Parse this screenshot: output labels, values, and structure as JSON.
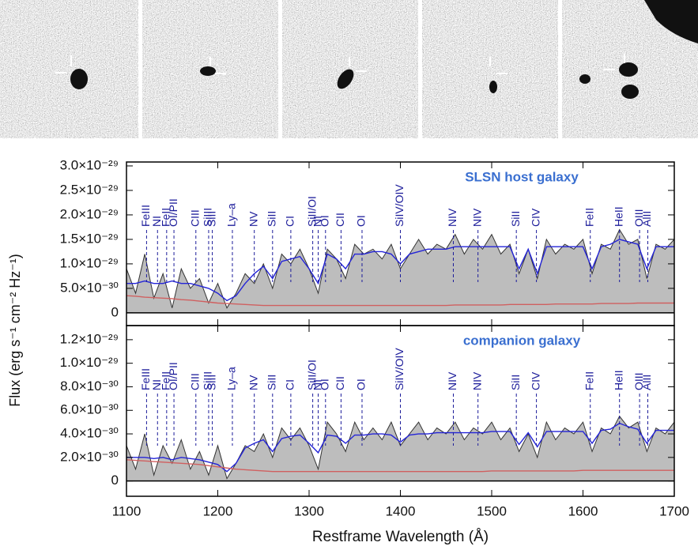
{
  "chart_data": [
    {
      "type": "line",
      "title": "SLSN host galaxy",
      "title_color": "#3a6fd0",
      "ylabel": "Flux (erg s⁻¹ cm⁻² Hz⁻¹)",
      "xlim": [
        1100,
        1700
      ],
      "xticks": [
        1100,
        1200,
        1300,
        1400,
        1500,
        1600,
        1700
      ],
      "ylim": [
        -2.6e-30,
        3.08e-29
      ],
      "yticks": [
        0,
        {
          "value": 5e-30,
          "label": "5.0×10⁻³⁰"
        },
        {
          "value": 1e-29,
          "label": "1.0×10⁻²⁹"
        },
        {
          "value": 1.5e-29,
          "label": "1.5×10⁻²⁹"
        },
        {
          "value": 2e-29,
          "label": "2.0×10⁻²⁹"
        },
        {
          "value": 2.5e-29,
          "label": "2.5×10⁻²⁹"
        },
        {
          "value": 3e-29,
          "label": "3.0×10⁻²⁹"
        }
      ],
      "x": [
        1100,
        1110,
        1120,
        1130,
        1140,
        1150,
        1160,
        1170,
        1180,
        1190,
        1200,
        1210,
        1220,
        1230,
        1240,
        1250,
        1260,
        1270,
        1280,
        1290,
        1300,
        1310,
        1320,
        1330,
        1340,
        1350,
        1360,
        1370,
        1380,
        1390,
        1400,
        1410,
        1420,
        1430,
        1440,
        1450,
        1460,
        1470,
        1480,
        1490,
        1500,
        1510,
        1520,
        1530,
        1540,
        1550,
        1560,
        1570,
        1580,
        1590,
        1600,
        1610,
        1620,
        1630,
        1640,
        1650,
        1660,
        1670,
        1680,
        1690,
        1700
      ],
      "series": [
        {
          "name": "spectrum",
          "color": "#333333",
          "fill": "#bdbdbd",
          "values": [
            9e-30,
            4e-30,
            1.2e-29,
            3e-30,
            8e-30,
            1e-30,
            9e-30,
            5e-30,
            7e-30,
            2e-30,
            6e-30,
            1e-30,
            4e-30,
            8e-30,
            6e-30,
            1e-29,
            5e-30,
            1.2e-29,
            1e-29,
            1.3e-29,
            9e-30,
            4e-30,
            1.3e-29,
            1.1e-29,
            7e-30,
            1.4e-29,
            1.2e-29,
            1.3e-29,
            1.1e-29,
            1.4e-29,
            9e-30,
            1.2e-29,
            1.5e-29,
            1.2e-29,
            1.4e-29,
            1.3e-29,
            1.6e-29,
            1.2e-29,
            1.5e-29,
            1.3e-29,
            1.6e-29,
            1.2e-29,
            1.4e-29,
            8e-30,
            1.3e-29,
            7e-30,
            1.5e-29,
            1.2e-29,
            1.4e-29,
            1.3e-29,
            1.5e-29,
            8e-30,
            1.4e-29,
            1.3e-29,
            1.7e-29,
            1.4e-29,
            1.5e-29,
            7e-30,
            1.4e-29,
            1.3e-29,
            1.5e-29
          ]
        },
        {
          "name": "model",
          "color": "#2424d8",
          "values": [
            6e-30,
            6e-30,
            6.5e-30,
            6e-30,
            6e-30,
            6.5e-30,
            6e-30,
            6e-30,
            5.5e-30,
            5e-30,
            4e-30,
            2.5e-30,
            3.5e-30,
            6e-30,
            8e-30,
            9.5e-30,
            7e-30,
            1.05e-29,
            1.1e-29,
            1.15e-29,
            9e-30,
            6e-30,
            1.2e-29,
            1.1e-29,
            9e-30,
            1.2e-29,
            1.2e-29,
            1.25e-29,
            1.25e-29,
            1.2e-29,
            1e-29,
            1.2e-29,
            1.25e-29,
            1.3e-29,
            1.3e-29,
            1.3e-29,
            1.35e-29,
            1.35e-29,
            1.35e-29,
            1.35e-29,
            1.35e-29,
            1.35e-29,
            1.35e-29,
            9e-30,
            1.3e-29,
            8e-30,
            1.35e-29,
            1.35e-29,
            1.35e-29,
            1.35e-29,
            1.35e-29,
            9e-30,
            1.35e-29,
            1.4e-29,
            1.5e-29,
            1.45e-29,
            1.4e-29,
            9e-30,
            1.35e-29,
            1.35e-29,
            1.35e-29
          ]
        },
        {
          "name": "error",
          "color": "#d06060",
          "values": [
            3.5e-30,
            3.4e-30,
            3.2e-30,
            3.1e-30,
            3e-30,
            2.9e-30,
            2.7e-30,
            2.6e-30,
            2.4e-30,
            2.2e-30,
            2e-30,
            1.9e-30,
            1.8e-30,
            1.7e-30,
            1.6e-30,
            1.5e-30,
            1.5e-30,
            1.5e-30,
            1.5e-30,
            1.5e-30,
            1.5e-30,
            1.5e-30,
            1.5e-30,
            1.5e-30,
            1.5e-30,
            1.5e-30,
            1.5e-30,
            1.5e-30,
            1.5e-30,
            1.5e-30,
            1.5e-30,
            1.5e-30,
            1.5e-30,
            1.5e-30,
            1.5e-30,
            1.5e-30,
            1.6e-30,
            1.6e-30,
            1.6e-30,
            1.6e-30,
            1.6e-30,
            1.6e-30,
            1.7e-30,
            1.7e-30,
            1.7e-30,
            1.7e-30,
            1.7e-30,
            1.8e-30,
            1.8e-30,
            1.8e-30,
            1.8e-30,
            1.8e-30,
            1.9e-30,
            1.9e-30,
            1.9e-30,
            1.9e-30,
            2e-30,
            2e-30,
            2e-30,
            2e-30,
            2e-30
          ]
        }
      ],
      "annotations": [
        {
          "text": "FeIII",
          "x": 1122
        },
        {
          "text": "NI",
          "x": 1134
        },
        {
          "text": "FeII",
          "x": 1144
        },
        {
          "text": "OI/PII",
          "x": 1152
        },
        {
          "text": "CIII",
          "x": 1176
        },
        {
          "text": "SiIII",
          "x": 1190
        },
        {
          "text": "SiII",
          "x": 1194
        },
        {
          "text": "Ly–a",
          "x": 1216
        },
        {
          "text": "NV",
          "x": 1240
        },
        {
          "text": "SiII",
          "x": 1260
        },
        {
          "text": "CI",
          "x": 1280
        },
        {
          "text": "SiII/OI",
          "x": 1304
        },
        {
          "text": "NI",
          "x": 1310
        },
        {
          "text": "OI",
          "x": 1318
        },
        {
          "text": "CII",
          "x": 1335
        },
        {
          "text": "OI",
          "x": 1358
        },
        {
          "text": "SiIV/OIV",
          "x": 1400
        },
        {
          "text": "NIV",
          "x": 1458
        },
        {
          "text": "NIV",
          "x": 1485
        },
        {
          "text": "SiII",
          "x": 1527
        },
        {
          "text": "CIV",
          "x": 1549
        },
        {
          "text": "FeII",
          "x": 1608
        },
        {
          "text": "HeII",
          "x": 1640
        },
        {
          "text": "OIII",
          "x": 1662
        },
        {
          "text": "AlII",
          "x": 1671
        }
      ]
    },
    {
      "type": "line",
      "title": "companion galaxy",
      "title_color": "#3a6fd0",
      "xlabel": "Restframe Wavelength (Å)",
      "xlim": [
        1100,
        1700
      ],
      "xticks": [
        1100,
        1200,
        1300,
        1400,
        1500,
        1600,
        1700
      ],
      "ylim": [
        -1.3e-30,
        1.32e-29
      ],
      "yticks": [
        0,
        {
          "value": 2e-30,
          "label": "2.0×10⁻³⁰"
        },
        {
          "value": 4e-30,
          "label": "4.0×10⁻³⁰"
        },
        {
          "value": 6e-30,
          "label": "6.0×10⁻³⁰"
        },
        {
          "value": 8e-30,
          "label": "8.0×10⁻³⁰"
        },
        {
          "value": 1e-29,
          "label": "1.0×10⁻²⁹"
        },
        {
          "value": 1.2e-29,
          "label": "1.2×10⁻²⁹"
        }
      ],
      "x": [
        1100,
        1110,
        1120,
        1130,
        1140,
        1150,
        1160,
        1170,
        1180,
        1190,
        1200,
        1210,
        1220,
        1230,
        1240,
        1250,
        1260,
        1270,
        1280,
        1290,
        1300,
        1310,
        1320,
        1330,
        1340,
        1350,
        1360,
        1370,
        1380,
        1390,
        1400,
        1410,
        1420,
        1430,
        1440,
        1450,
        1460,
        1470,
        1480,
        1490,
        1500,
        1510,
        1520,
        1530,
        1540,
        1550,
        1560,
        1570,
        1580,
        1590,
        1600,
        1610,
        1620,
        1630,
        1640,
        1650,
        1660,
        1670,
        1680,
        1690,
        1700
      ],
      "series": [
        {
          "name": "spectrum",
          "color": "#333333",
          "fill": "#bdbdbd",
          "values": [
            3e-30,
            1e-30,
            4e-30,
            5e-31,
            3e-30,
            1.5e-30,
            3.5e-30,
            1e-30,
            2.5e-30,
            5e-31,
            3e-30,
            2e-31,
            1.5e-30,
            3e-30,
            2.5e-30,
            4e-30,
            2e-30,
            4.5e-30,
            3.5e-30,
            4.5e-30,
            3e-30,
            1e-30,
            5e-30,
            4e-30,
            2.5e-30,
            5e-30,
            3.5e-30,
            4.5e-30,
            3.5e-30,
            5e-30,
            3e-30,
            4e-30,
            5e-30,
            3.5e-30,
            4.5e-30,
            4e-30,
            5e-30,
            3.5e-30,
            4.5e-30,
            4e-30,
            5e-30,
            3.5e-30,
            4.5e-30,
            2.5e-30,
            4e-30,
            2e-30,
            5e-30,
            3.5e-30,
            4.5e-30,
            4e-30,
            5e-30,
            2.5e-30,
            4.5e-30,
            4e-30,
            5.5e-30,
            4.5e-30,
            5e-30,
            2.5e-30,
            4.5e-30,
            4e-30,
            5e-30
          ]
        },
        {
          "name": "model",
          "color": "#2424d8",
          "values": [
            2e-30,
            2e-30,
            2e-30,
            1.9e-30,
            2e-30,
            1.8e-30,
            2e-30,
            1.9e-30,
            1.8e-30,
            1.6e-30,
            1.4e-30,
            8e-31,
            1.5e-30,
            2.8e-30,
            3.2e-30,
            3.5e-30,
            2.5e-30,
            3.6e-30,
            3.8e-30,
            3.9e-30,
            3.2e-30,
            2.4e-30,
            3.9e-30,
            3.8e-30,
            3.2e-30,
            3.9e-30,
            3.9e-30,
            4e-30,
            4e-30,
            3.9e-30,
            3.3e-30,
            3.9e-30,
            4e-30,
            4e-30,
            4.1e-30,
            4.1e-30,
            4.1e-30,
            4.1e-30,
            4.1e-30,
            4.1e-30,
            4.2e-30,
            4.2e-30,
            4.2e-30,
            3.1e-30,
            4.1e-30,
            2.9e-30,
            4.2e-30,
            4.2e-30,
            4.2e-30,
            4.2e-30,
            4.2e-30,
            3.2e-30,
            4.3e-30,
            4.4e-30,
            4.9e-30,
            4.6e-30,
            4.4e-30,
            3.2e-30,
            4.3e-30,
            4.3e-30,
            4.3e-30
          ]
        },
        {
          "name": "error",
          "color": "#d06060",
          "values": [
            1.8e-30,
            1.75e-30,
            1.7e-30,
            1.65e-30,
            1.6e-30,
            1.55e-30,
            1.5e-30,
            1.45e-30,
            1.4e-30,
            1.3e-30,
            1.2e-30,
            1.1e-30,
            1e-30,
            9.5e-31,
            9e-31,
            8.5e-31,
            8e-31,
            8e-31,
            8e-31,
            8e-31,
            8e-31,
            8e-31,
            8e-31,
            8e-31,
            8e-31,
            8e-31,
            8e-31,
            8e-31,
            8e-31,
            8e-31,
            8e-31,
            8e-31,
            8e-31,
            8e-31,
            8e-31,
            8e-31,
            8e-31,
            8e-31,
            8e-31,
            8e-31,
            8.5e-31,
            8.5e-31,
            8.5e-31,
            8.5e-31,
            8.5e-31,
            8.5e-31,
            8.5e-31,
            8.5e-31,
            8.5e-31,
            8.5e-31,
            9e-31,
            9e-31,
            9e-31,
            9e-31,
            9e-31,
            9e-31,
            9e-31,
            9e-31,
            9e-31,
            9e-31,
            9e-31
          ]
        }
      ],
      "annotations": [
        {
          "text": "FeIII",
          "x": 1122
        },
        {
          "text": "NI",
          "x": 1134
        },
        {
          "text": "FeII",
          "x": 1144
        },
        {
          "text": "OI/PII",
          "x": 1152
        },
        {
          "text": "CIII",
          "x": 1176
        },
        {
          "text": "SiIII",
          "x": 1190
        },
        {
          "text": "SiII",
          "x": 1194
        },
        {
          "text": "Ly–a",
          "x": 1216
        },
        {
          "text": "NV",
          "x": 1240
        },
        {
          "text": "SiII",
          "x": 1260
        },
        {
          "text": "CI",
          "x": 1280
        },
        {
          "text": "SiII/OI",
          "x": 1304
        },
        {
          "text": "NI",
          "x": 1310
        },
        {
          "text": "OI",
          "x": 1318
        },
        {
          "text": "CII",
          "x": 1335
        },
        {
          "text": "OI",
          "x": 1358
        },
        {
          "text": "SiIV/OIV",
          "x": 1400
        },
        {
          "text": "NIV",
          "x": 1458
        },
        {
          "text": "NIV",
          "x": 1485
        },
        {
          "text": "SiII",
          "x": 1527
        },
        {
          "text": "CIV",
          "x": 1549
        },
        {
          "text": "FeII",
          "x": 1608
        },
        {
          "text": "HeII",
          "x": 1640
        },
        {
          "text": "OIII",
          "x": 1662
        },
        {
          "text": "AlII",
          "x": 1671
        }
      ]
    }
  ]
}
